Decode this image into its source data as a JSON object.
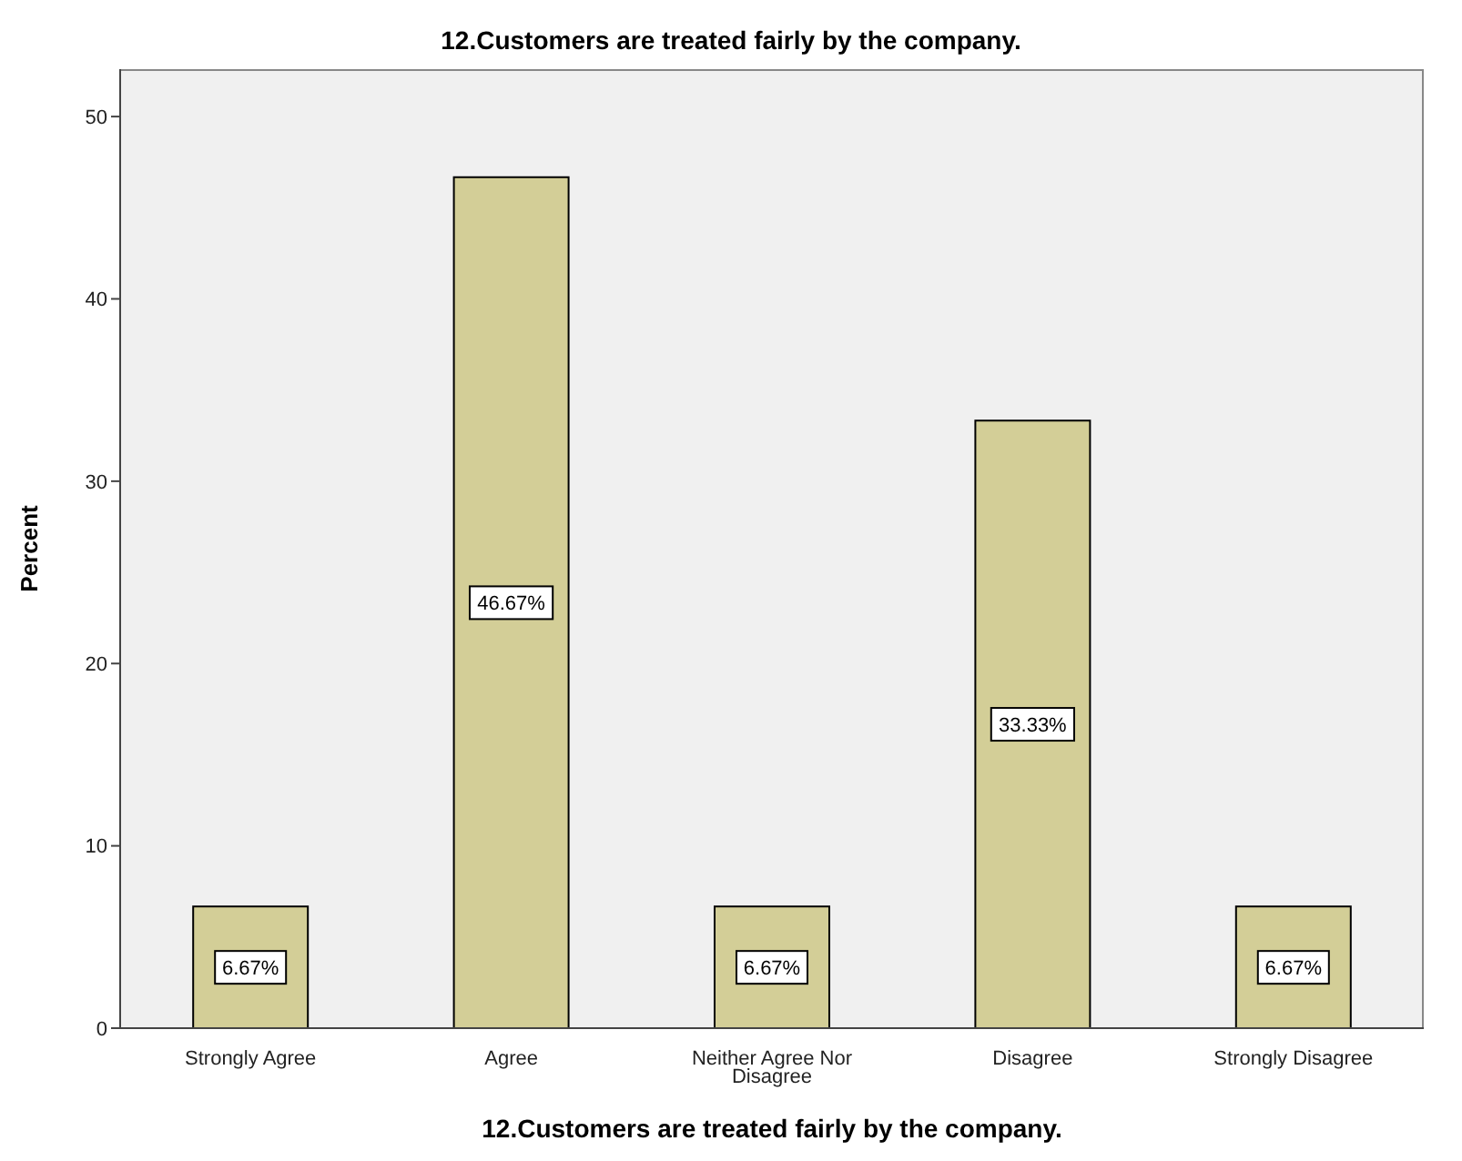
{
  "chart_data": {
    "type": "bar",
    "title": "12.Customers are treated fairly by the company.",
    "xlabel": "12.Customers are treated fairly by the company.",
    "ylabel": "Percent",
    "categories": [
      "Strongly Agree",
      "Agree",
      "Neither Agree Nor Disagree",
      "Disagree",
      "Strongly Disagree"
    ],
    "values": [
      6.67,
      46.67,
      6.67,
      33.33,
      6.67
    ],
    "value_labels": [
      "6.67%",
      "46.67%",
      "6.67%",
      "33.33%",
      "6.67%"
    ],
    "color": "#d3ce97",
    "ylim": [
      0,
      52.6
    ],
    "yticks": [
      0,
      10,
      20,
      30,
      40,
      50
    ],
    "legend": false
  }
}
